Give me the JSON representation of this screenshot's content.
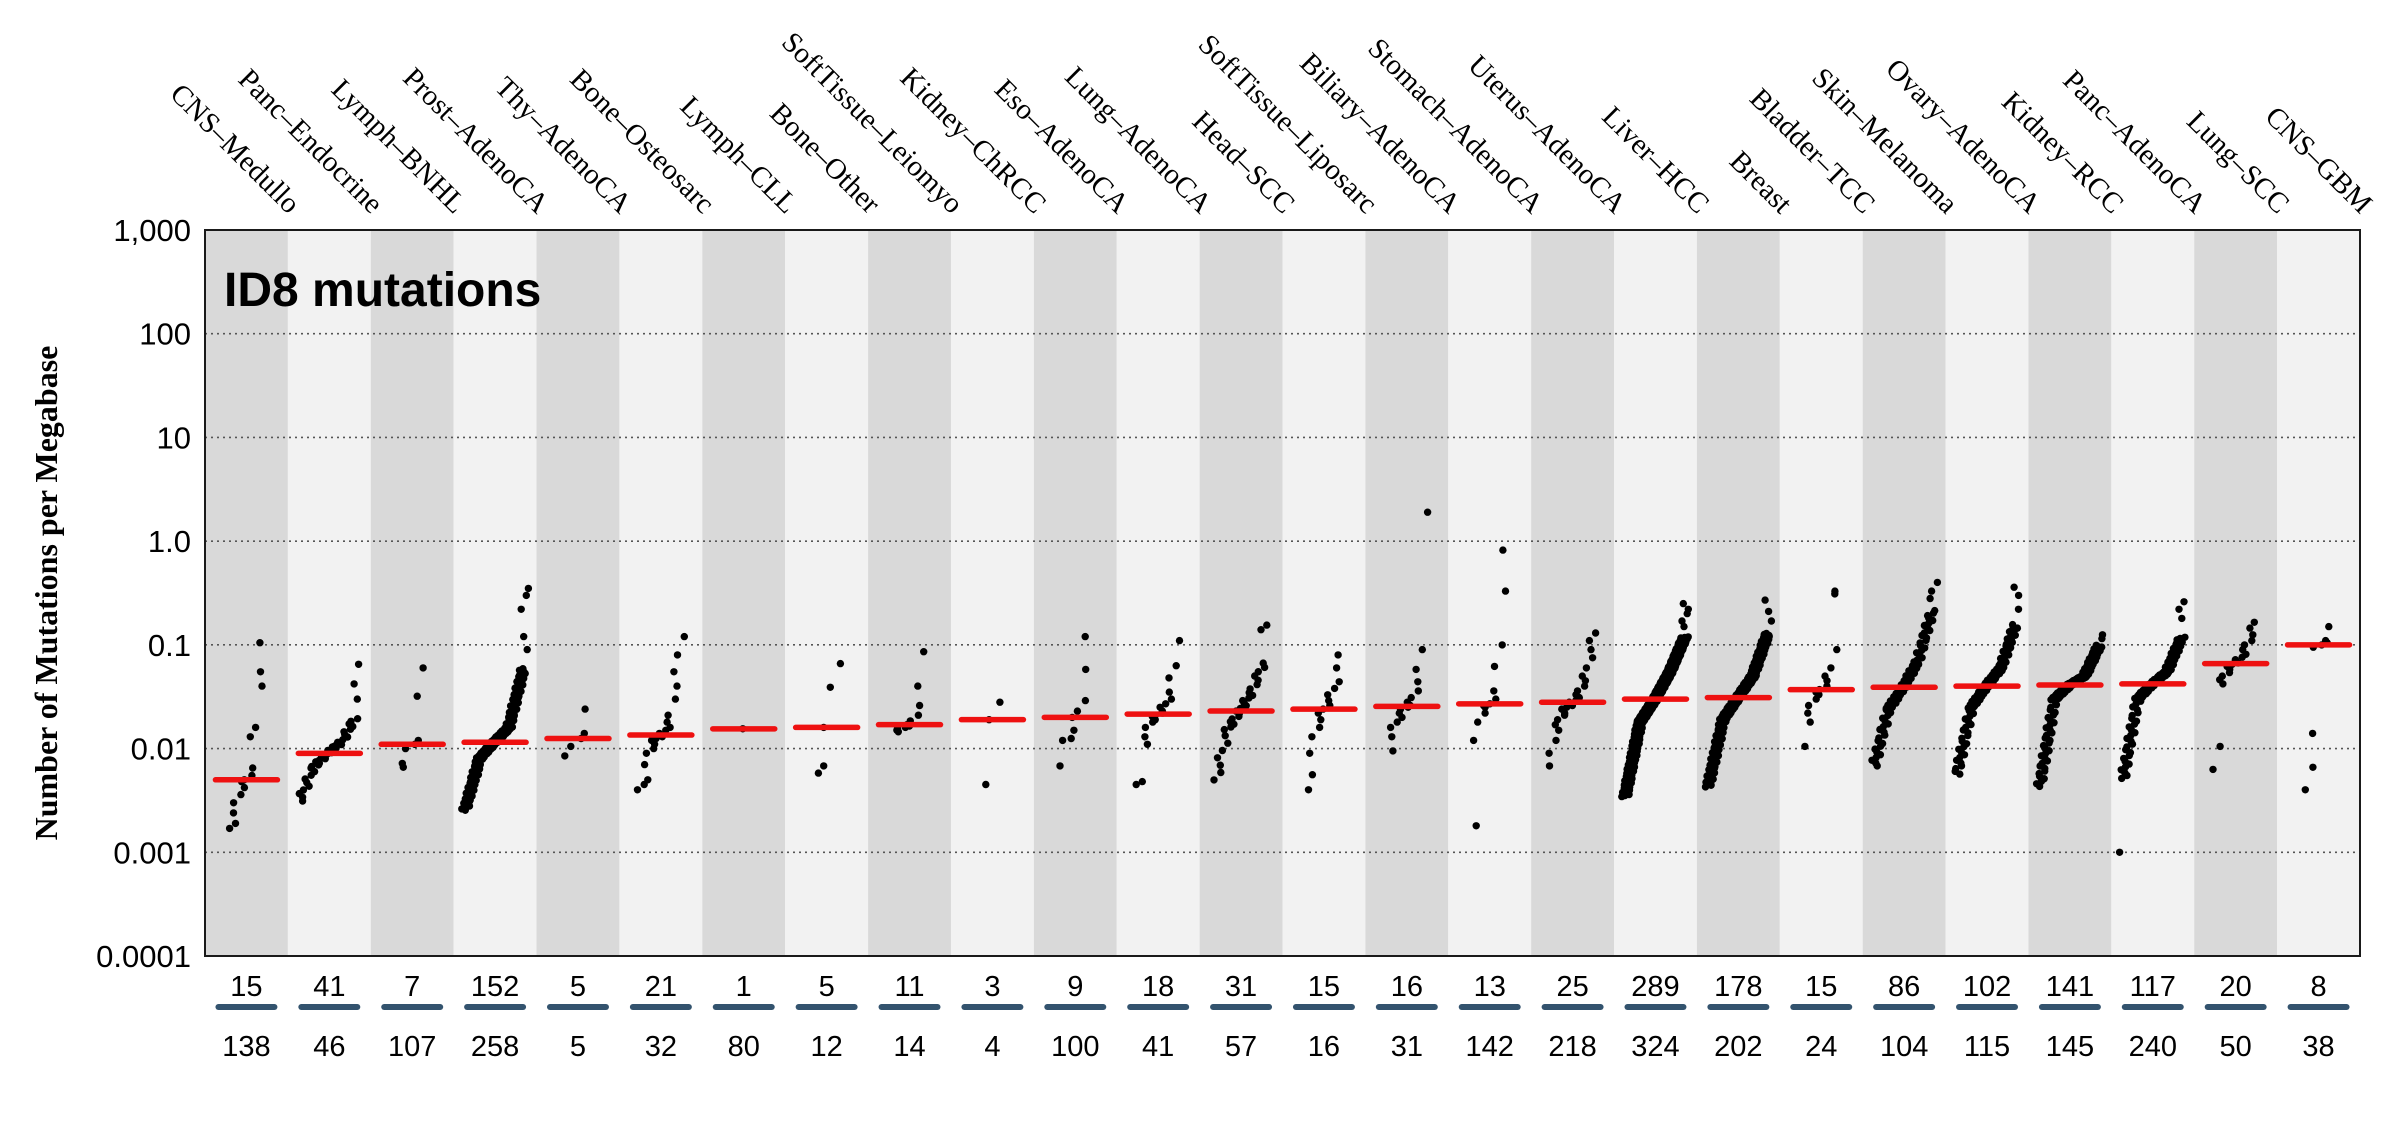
{
  "figure": {
    "title": "ID8 mutations",
    "y_axis": {
      "label": "Number of Mutations per Megabase",
      "tick_labels": [
        "1,000",
        "100",
        "10",
        "1.0",
        "0.1",
        "0.01",
        "0.001",
        "0.0001"
      ],
      "tick_values": [
        1000,
        100,
        10,
        1,
        0.1,
        0.01,
        0.001,
        0.0001
      ]
    },
    "colors": {
      "band_dark": "#d9d9d9",
      "band_light": "#f2f2f2",
      "dot": "#000000",
      "median_line": "#ee1111",
      "divider_bar": "#33536e",
      "grid": "#555555",
      "border": "#1a1a1a",
      "text": "#000000"
    }
  },
  "chart_data": {
    "type": "scatter",
    "title": "ID8 mutations",
    "ylabel": "Number of Mutations per Megabase",
    "yscale": "log",
    "ylim": [
      0.0001,
      1000
    ],
    "gridlines": [
      100,
      10,
      1,
      0.1,
      0.01,
      0.001
    ],
    "legend": "none",
    "categories": [
      {
        "label": "CNS–Medullo",
        "n_top": 15,
        "n_bottom": 138,
        "median": 0.005,
        "values": [
          0.0017,
          0.0019,
          0.0024,
          0.003,
          0.0036,
          0.0042,
          0.0048,
          0.005,
          0.0055,
          0.0065,
          0.013,
          0.016,
          0.04,
          0.055,
          0.105
        ]
      },
      {
        "label": "Panc–Endocrine",
        "n_top": 41,
        "n_bottom": 46,
        "median": 0.009,
        "quantiles": {
          "min": 0.003,
          "p25": 0.0065,
          "median": 0.009,
          "p75": 0.0115,
          "max": 0.02
        },
        "low_outliers": [],
        "high_outliers": [
          0.03,
          0.042,
          0.065
        ]
      },
      {
        "label": "Lymph–BNHL",
        "n_top": 7,
        "n_bottom": 107,
        "median": 0.011,
        "values": [
          0.0066,
          0.0072,
          0.01,
          0.011,
          0.012,
          0.032,
          0.06
        ]
      },
      {
        "label": "Prost–AdenoCA",
        "n_top": 152,
        "n_bottom": 258,
        "median": 0.0115,
        "quantiles": {
          "min": 0.0025,
          "p25": 0.008,
          "median": 0.0115,
          "p75": 0.016,
          "max": 0.06
        },
        "low_outliers": [],
        "high_outliers": [
          0.09,
          0.12,
          0.22,
          0.3,
          0.35
        ]
      },
      {
        "label": "Thy–AdenoCA",
        "n_top": 5,
        "n_bottom": 5,
        "median": 0.0125,
        "values": [
          0.0085,
          0.0105,
          0.0125,
          0.014,
          0.024
        ]
      },
      {
        "label": "Bone–Osteosarc",
        "n_top": 21,
        "n_bottom": 32,
        "median": 0.0135,
        "values": [
          0.004,
          0.0045,
          0.005,
          0.007,
          0.009,
          0.01,
          0.011,
          0.012,
          0.0125,
          0.013,
          0.0135,
          0.014,
          0.015,
          0.016,
          0.018,
          0.021,
          0.03,
          0.04,
          0.055,
          0.08,
          0.12
        ]
      },
      {
        "label": "Lymph–CLL",
        "n_top": 1,
        "n_bottom": 80,
        "median": 0.0155,
        "values": [
          0.0155
        ]
      },
      {
        "label": "Bone–Other",
        "n_top": 5,
        "n_bottom": 12,
        "median": 0.016,
        "values": [
          0.0058,
          0.0068,
          0.016,
          0.039,
          0.066
        ]
      },
      {
        "label": "SoftTissue–Leiomyo",
        "n_top": 11,
        "n_bottom": 14,
        "median": 0.017,
        "values": [
          0.0145,
          0.015,
          0.0155,
          0.016,
          0.0165,
          0.017,
          0.0185,
          0.021,
          0.026,
          0.04,
          0.086
        ]
      },
      {
        "label": "Kidney–ChRCC",
        "n_top": 3,
        "n_bottom": 4,
        "median": 0.019,
        "values": [
          0.0045,
          0.019,
          0.028
        ]
      },
      {
        "label": "Eso–AdenoCA",
        "n_top": 9,
        "n_bottom": 100,
        "median": 0.02,
        "values": [
          0.0068,
          0.012,
          0.0125,
          0.015,
          0.02,
          0.023,
          0.029,
          0.058,
          0.12
        ]
      },
      {
        "label": "Lung–AdenoCA",
        "n_top": 18,
        "n_bottom": 41,
        "median": 0.0215,
        "values": [
          0.0045,
          0.0048,
          0.011,
          0.013,
          0.016,
          0.018,
          0.019,
          0.0205,
          0.021,
          0.022,
          0.023,
          0.025,
          0.027,
          0.03,
          0.035,
          0.048,
          0.063,
          0.11
        ]
      },
      {
        "label": "Head–SCC",
        "n_top": 31,
        "n_bottom": 57,
        "median": 0.023,
        "quantiles": {
          "min": 0.0046,
          "p25": 0.015,
          "median": 0.023,
          "p75": 0.035,
          "max": 0.07
        },
        "low_outliers": [],
        "high_outliers": [
          0.14,
          0.155
        ]
      },
      {
        "label": "SoftTissue–Liposarc",
        "n_top": 15,
        "n_bottom": 16,
        "median": 0.024,
        "values": [
          0.004,
          0.0056,
          0.009,
          0.013,
          0.016,
          0.019,
          0.022,
          0.024,
          0.026,
          0.029,
          0.033,
          0.038,
          0.044,
          0.06,
          0.08
        ]
      },
      {
        "label": "Biliary–AdenoCA",
        "n_top": 16,
        "n_bottom": 31,
        "median": 0.0255,
        "values": [
          0.0095,
          0.013,
          0.016,
          0.018,
          0.02,
          0.022,
          0.024,
          0.025,
          0.026,
          0.028,
          0.031,
          0.036,
          0.044,
          0.058,
          0.09,
          1.9
        ]
      },
      {
        "label": "Stomach–AdenoCA",
        "n_top": 13,
        "n_bottom": 142,
        "median": 0.027,
        "values": [
          0.0018,
          0.012,
          0.018,
          0.022,
          0.025,
          0.026,
          0.027,
          0.03,
          0.036,
          0.062,
          0.1,
          0.33,
          0.82
        ]
      },
      {
        "label": "Uterus–AdenoCA",
        "n_top": 25,
        "n_bottom": 218,
        "median": 0.028,
        "values": [
          0.0068,
          0.009,
          0.012,
          0.015,
          0.017,
          0.019,
          0.021,
          0.022,
          0.024,
          0.025,
          0.026,
          0.027,
          0.028,
          0.029,
          0.031,
          0.033,
          0.036,
          0.04,
          0.045,
          0.05,
          0.06,
          0.075,
          0.09,
          0.11,
          0.13
        ]
      },
      {
        "label": "Liver–HCC",
        "n_top": 289,
        "n_bottom": 324,
        "median": 0.03,
        "quantiles": {
          "min": 0.0034,
          "p25": 0.018,
          "median": 0.03,
          "p75": 0.055,
          "max": 0.12
        },
        "low_outliers": [],
        "high_outliers": [
          0.15,
          0.17,
          0.2,
          0.22,
          0.25
        ]
      },
      {
        "label": "Breast",
        "n_top": 178,
        "n_bottom": 202,
        "median": 0.031,
        "quantiles": {
          "min": 0.0042,
          "p25": 0.019,
          "median": 0.031,
          "p75": 0.05,
          "max": 0.13
        },
        "low_outliers": [],
        "high_outliers": [
          0.17,
          0.21,
          0.27
        ]
      },
      {
        "label": "Bladder–TCC",
        "n_top": 15,
        "n_bottom": 24,
        "median": 0.037,
        "values": [
          0.0105,
          0.018,
          0.022,
          0.026,
          0.03,
          0.033,
          0.035,
          0.037,
          0.04,
          0.045,
          0.05,
          0.06,
          0.09,
          0.31,
          0.33
        ]
      },
      {
        "label": "Skin–Melanoma",
        "n_top": 86,
        "n_bottom": 104,
        "median": 0.039,
        "quantiles": {
          "min": 0.0066,
          "p25": 0.024,
          "median": 0.039,
          "p75": 0.07,
          "max": 0.22
        },
        "low_outliers": [],
        "high_outliers": [
          0.28,
          0.33,
          0.4
        ]
      },
      {
        "label": "Ovary–AdenoCA",
        "n_top": 102,
        "n_bottom": 115,
        "median": 0.04,
        "quantiles": {
          "min": 0.0055,
          "p25": 0.025,
          "median": 0.04,
          "p75": 0.06,
          "max": 0.16
        },
        "low_outliers": [],
        "high_outliers": [
          0.22,
          0.3,
          0.36
        ]
      },
      {
        "label": "Kidney–RCC",
        "n_top": 141,
        "n_bottom": 145,
        "median": 0.041,
        "quantiles": {
          "min": 0.0042,
          "p25": 0.03,
          "median": 0.041,
          "p75": 0.05,
          "max": 0.1
        },
        "low_outliers": [],
        "high_outliers": [
          0.115,
          0.125
        ]
      },
      {
        "label": "Panc–AdenoCA",
        "n_top": 117,
        "n_bottom": 240,
        "median": 0.042,
        "quantiles": {
          "min": 0.005,
          "p25": 0.03,
          "median": 0.042,
          "p75": 0.055,
          "max": 0.12
        },
        "low_outliers": [
          0.001
        ],
        "high_outliers": [
          0.18,
          0.22,
          0.26
        ]
      },
      {
        "label": "Lung–SCC",
        "n_top": 20,
        "n_bottom": 50,
        "median": 0.066,
        "values": [
          0.0063,
          0.0105,
          0.042,
          0.046,
          0.05,
          0.054,
          0.058,
          0.062,
          0.065,
          0.067,
          0.069,
          0.072,
          0.076,
          0.081,
          0.09,
          0.1,
          0.11,
          0.125,
          0.145,
          0.165
        ]
      },
      {
        "label": "CNS–GBM",
        "n_top": 8,
        "n_bottom": 38,
        "median": 0.1,
        "values": [
          0.004,
          0.0066,
          0.014,
          0.095,
          0.1,
          0.105,
          0.11,
          0.15
        ]
      }
    ]
  }
}
